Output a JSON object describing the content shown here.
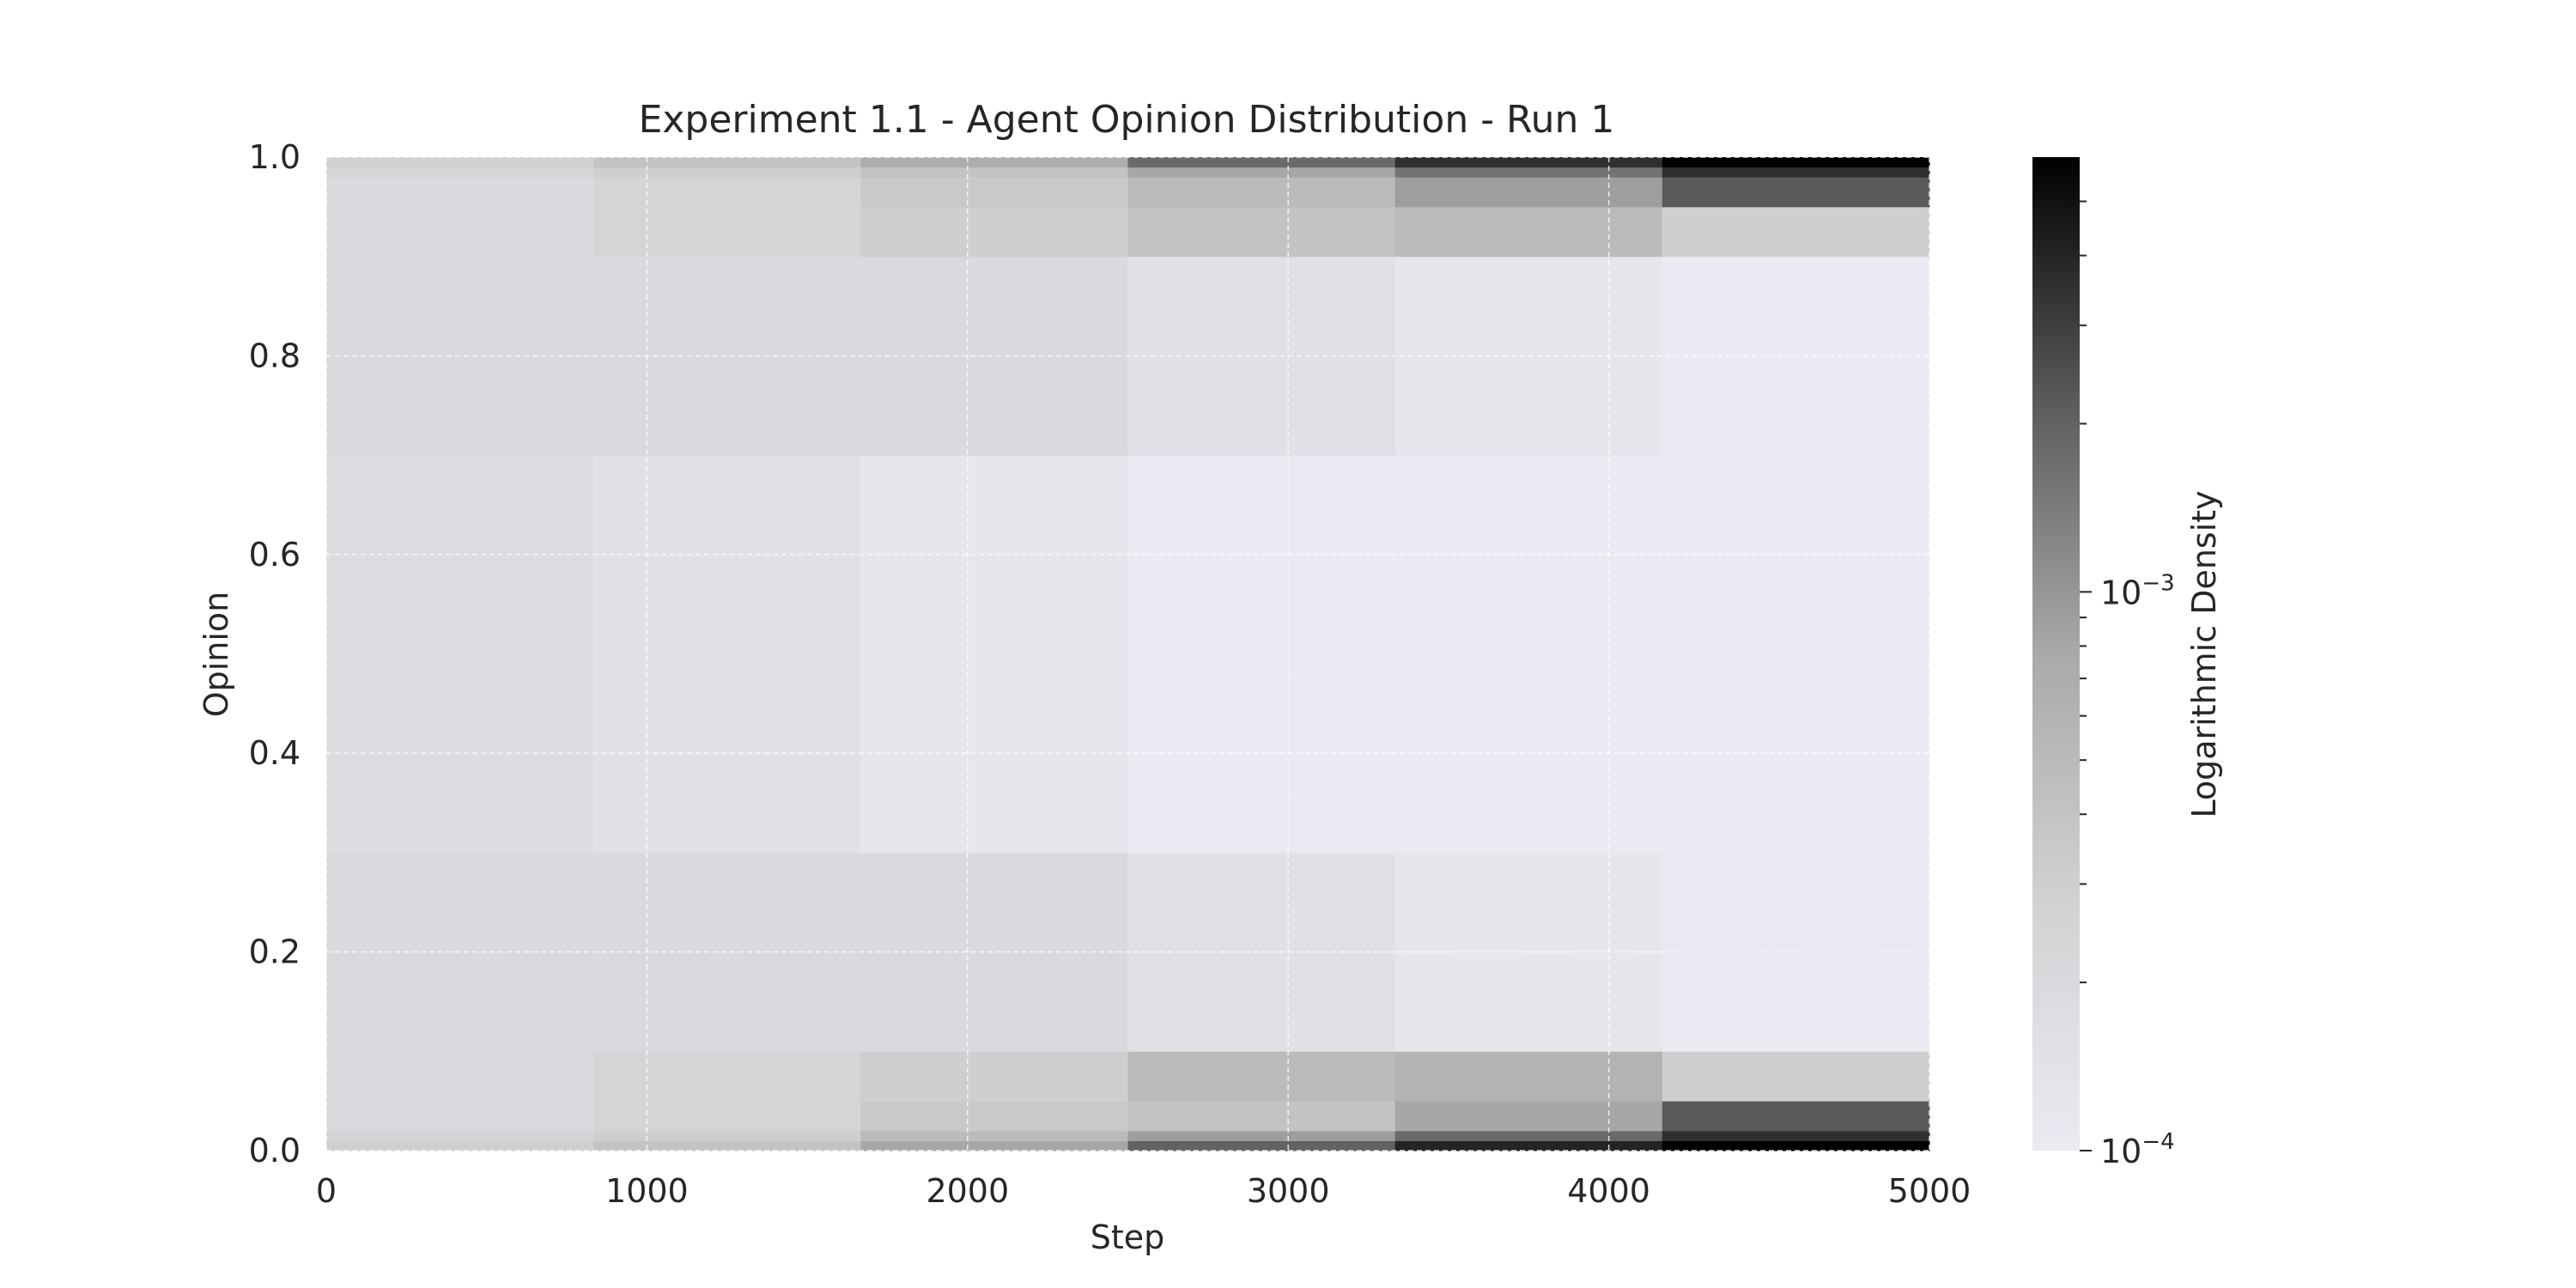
{
  "chart_data": {
    "type": "heatmap",
    "title": "Experiment 1.1 - Agent Opinion Distribution - Run 1",
    "xlabel": "Step",
    "ylabel": "Opinion",
    "xlim": [
      0,
      5000
    ],
    "ylim": [
      0.0,
      1.0
    ],
    "x_ticks": [
      0,
      1000,
      2000,
      3000,
      4000,
      5000
    ],
    "y_ticks": [
      0.0,
      0.2,
      0.4,
      0.6,
      0.8,
      1.0
    ],
    "x_tick_labels": [
      "0",
      "1000",
      "2000",
      "3000",
      "4000",
      "5000"
    ],
    "y_tick_labels": [
      "0.0",
      "0.2",
      "0.4",
      "0.6",
      "0.8",
      "1.0"
    ],
    "grid": true,
    "colormap": "greys",
    "colorbar": {
      "label": "Logarithmic Density",
      "scale": "log",
      "range": [
        0.0001,
        0.006
      ],
      "ticks": [
        0.0001,
        0.001
      ],
      "tick_labels": [
        {
          "base": "10",
          "exp": "−4"
        },
        {
          "base": "10",
          "exp": "−3"
        }
      ],
      "minor_ticks": [
        0.0002,
        0.0003,
        0.0004,
        0.0005,
        0.0006,
        0.0007,
        0.0008,
        0.0009,
        0.002,
        0.003,
        0.004,
        0.005
      ]
    },
    "bands": [
      {
        "y0": 0.0,
        "y1": 0.01,
        "values": [
          0.0003,
          0.0004,
          0.0008,
          0.002,
          0.004,
          0.006
        ]
      },
      {
        "y0": 0.01,
        "y1": 0.02,
        "values": [
          0.00025,
          0.0003,
          0.0005,
          0.0009,
          0.0018,
          0.0035
        ]
      },
      {
        "y0": 0.02,
        "y1": 0.05,
        "values": [
          0.0002,
          0.00025,
          0.00035,
          0.0004,
          0.0008,
          0.0022
        ]
      },
      {
        "y0": 0.05,
        "y1": 0.1,
        "values": [
          0.0002,
          0.00025,
          0.0003,
          0.0005,
          0.0006,
          0.0003
        ]
      },
      {
        "y0": 0.1,
        "y1": 0.3,
        "values": [
          0.0002,
          0.0002,
          0.0002,
          0.00015,
          0.00012,
          0.0001
        ]
      },
      {
        "y0": 0.3,
        "y1": 0.7,
        "values": [
          0.00018,
          0.00015,
          0.00012,
          0.0001,
          0.0001,
          0.0001
        ]
      },
      {
        "y0": 0.7,
        "y1": 0.9,
        "values": [
          0.0002,
          0.0002,
          0.0002,
          0.00015,
          0.00012,
          0.0001
        ]
      },
      {
        "y0": 0.9,
        "y1": 0.95,
        "values": [
          0.0002,
          0.00025,
          0.0003,
          0.0004,
          0.0005,
          0.0003
        ]
      },
      {
        "y0": 0.95,
        "y1": 0.98,
        "values": [
          0.0002,
          0.00025,
          0.00035,
          0.0005,
          0.0009,
          0.0022
        ]
      },
      {
        "y0": 0.98,
        "y1": 0.99,
        "values": [
          0.00025,
          0.0003,
          0.0004,
          0.0008,
          0.0016,
          0.0035
        ]
      },
      {
        "y0": 0.99,
        "y1": 1.0,
        "values": [
          0.0003,
          0.0004,
          0.0007,
          0.0018,
          0.0035,
          0.006
        ]
      }
    ]
  }
}
